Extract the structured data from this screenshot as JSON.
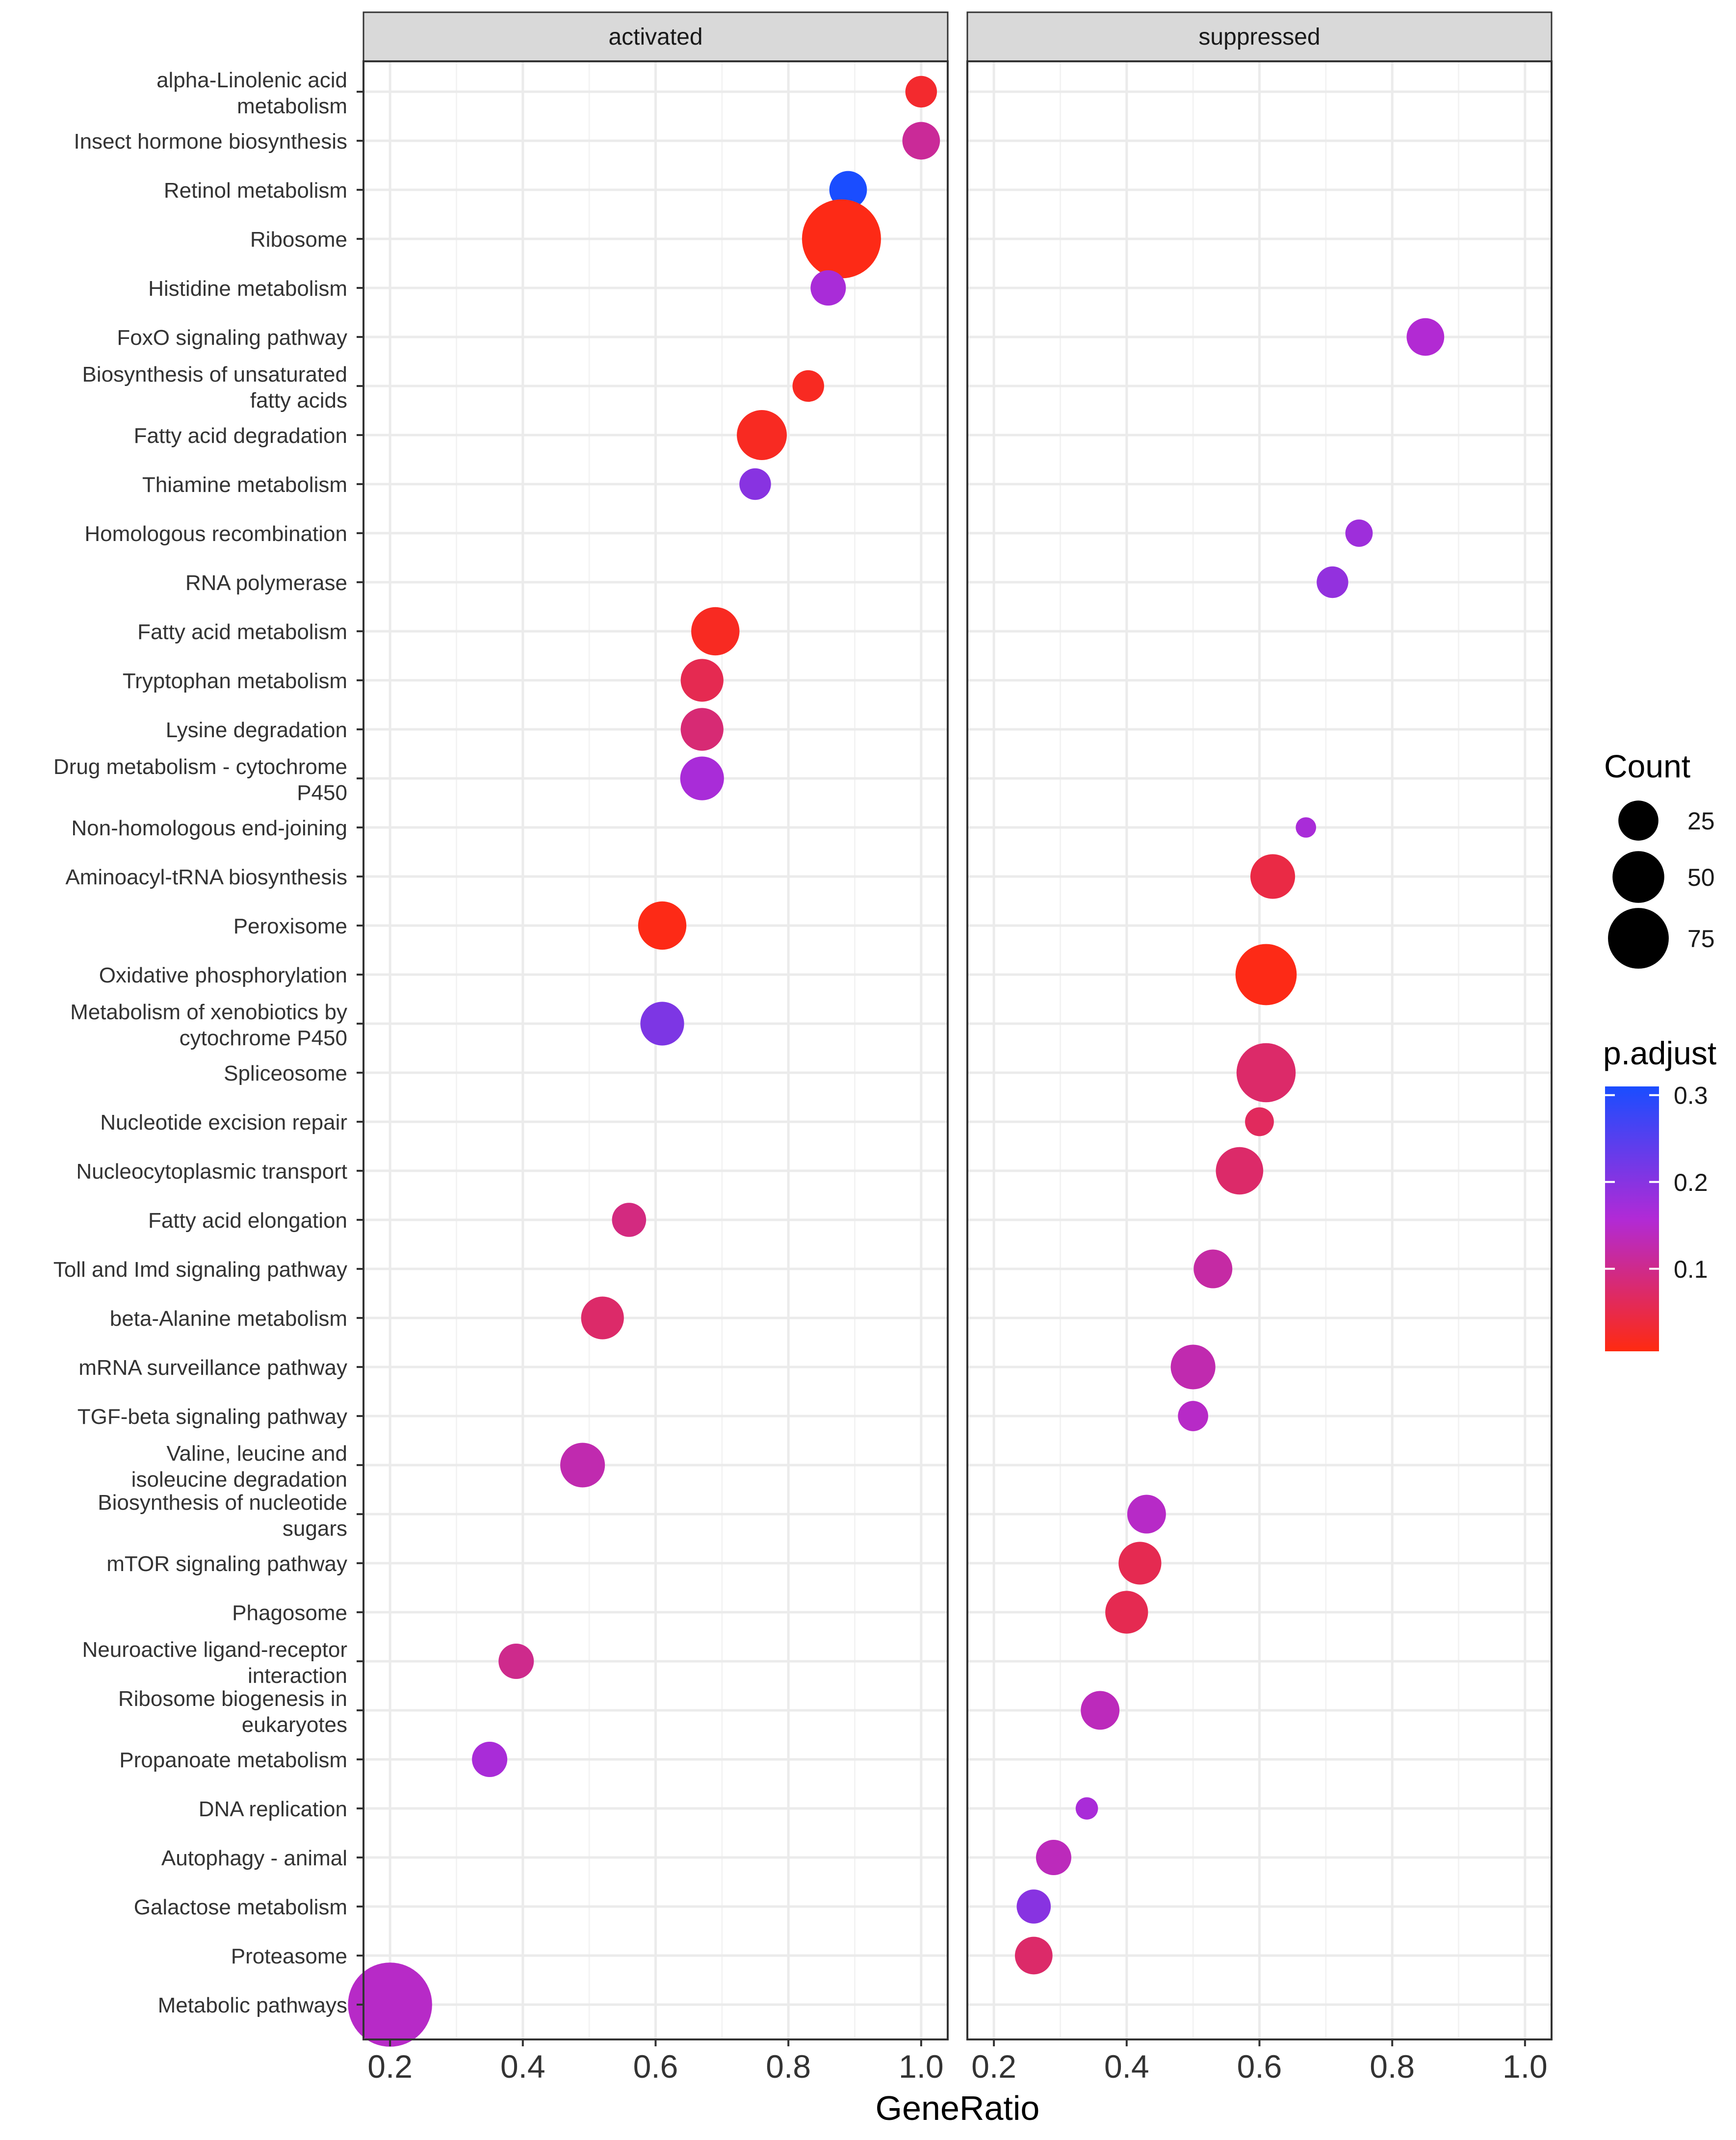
{
  "chart_data": {
    "type": "scatter",
    "subtype": "dotplot",
    "xlabel": "GeneRatio",
    "ylabel": "",
    "xlim": [
      0.16,
      1.04
    ],
    "xticks": [
      "0.2",
      "0.4",
      "0.6",
      "0.8",
      "1.0"
    ],
    "xtick_values": [
      0.2,
      0.4,
      0.6,
      0.8,
      1.0
    ],
    "panels": [
      "activated",
      "suppressed"
    ],
    "categories": [
      "alpha-Linolenic acid\nmetabolism",
      "Insect hormone biosynthesis",
      "Retinol metabolism",
      "Ribosome",
      "Histidine metabolism",
      "FoxO signaling pathway",
      "Biosynthesis of unsaturated\nfatty acids",
      "Fatty acid degradation",
      "Thiamine metabolism",
      "Homologous recombination",
      "RNA polymerase",
      "Fatty acid metabolism",
      "Tryptophan metabolism",
      "Lysine degradation",
      "Drug metabolism - cytochrome\nP450",
      "Non-homologous end-joining",
      "Aminoacyl-tRNA biosynthesis",
      "Peroxisome",
      "Oxidative phosphorylation",
      "Metabolism of xenobiotics by\ncytochrome P450",
      "Spliceosome",
      "Nucleotide excision repair",
      "Nucleocytoplasmic transport",
      "Fatty acid elongation",
      "Toll and Imd signaling pathway",
      "beta-Alanine metabolism",
      "mRNA surveillance pathway",
      "TGF-beta signaling pathway",
      "Valine, leucine and\nisoleucine degradation",
      "Biosynthesis of nucleotide\nsugars",
      "mTOR signaling pathway",
      "Phagosome",
      "Neuroactive ligand-receptor\ninteraction",
      "Ribosome biogenesis in\neukaryotes",
      "Propanoate metabolism",
      "DNA replication",
      "Autophagy - animal",
      "Galactose metabolism",
      "Proteasome",
      "Metabolic pathways"
    ],
    "points": [
      {
        "panel": "activated",
        "cat": 0,
        "x": 1.0,
        "count": 12,
        "p_adjust": 0.03
      },
      {
        "panel": "activated",
        "cat": 1,
        "x": 1.0,
        "count": 17,
        "p_adjust": 0.12
      },
      {
        "panel": "activated",
        "cat": 2,
        "x": 0.89,
        "count": 17,
        "p_adjust": 0.31
      },
      {
        "panel": "activated",
        "cat": 3,
        "x": 0.88,
        "count": 75,
        "p_adjust": 0.01
      },
      {
        "panel": "activated",
        "cat": 4,
        "x": 0.86,
        "count": 15,
        "p_adjust": 0.18
      },
      {
        "panel": "suppressed",
        "cat": 5,
        "x": 0.85,
        "count": 17,
        "p_adjust": 0.17
      },
      {
        "panel": "activated",
        "cat": 6,
        "x": 0.83,
        "count": 12,
        "p_adjust": 0.02
      },
      {
        "panel": "activated",
        "cat": 7,
        "x": 0.76,
        "count": 30,
        "p_adjust": 0.02
      },
      {
        "panel": "activated",
        "cat": 8,
        "x": 0.75,
        "count": 12,
        "p_adjust": 0.21
      },
      {
        "panel": "suppressed",
        "cat": 9,
        "x": 0.75,
        "count": 9,
        "p_adjust": 0.19
      },
      {
        "panel": "suppressed",
        "cat": 10,
        "x": 0.71,
        "count": 12,
        "p_adjust": 0.2
      },
      {
        "panel": "activated",
        "cat": 11,
        "x": 0.69,
        "count": 28,
        "p_adjust": 0.02
      },
      {
        "panel": "activated",
        "cat": 12,
        "x": 0.67,
        "count": 22,
        "p_adjust": 0.06
      },
      {
        "panel": "activated",
        "cat": 13,
        "x": 0.67,
        "count": 22,
        "p_adjust": 0.09
      },
      {
        "panel": "activated",
        "cat": 14,
        "x": 0.67,
        "count": 23,
        "p_adjust": 0.18
      },
      {
        "panel": "suppressed",
        "cat": 15,
        "x": 0.67,
        "count": 5,
        "p_adjust": 0.18
      },
      {
        "panel": "suppressed",
        "cat": 16,
        "x": 0.62,
        "count": 24,
        "p_adjust": 0.05
      },
      {
        "panel": "activated",
        "cat": 17,
        "x": 0.61,
        "count": 28,
        "p_adjust": 0.01
      },
      {
        "panel": "suppressed",
        "cat": 18,
        "x": 0.61,
        "count": 45,
        "p_adjust": 0.01
      },
      {
        "panel": "activated",
        "cat": 19,
        "x": 0.61,
        "count": 23,
        "p_adjust": 0.22
      },
      {
        "panel": "suppressed",
        "cat": 20,
        "x": 0.61,
        "count": 42,
        "p_adjust": 0.08
      },
      {
        "panel": "suppressed",
        "cat": 21,
        "x": 0.6,
        "count": 10,
        "p_adjust": 0.07
      },
      {
        "panel": "suppressed",
        "cat": 22,
        "x": 0.57,
        "count": 27,
        "p_adjust": 0.08
      },
      {
        "panel": "activated",
        "cat": 23,
        "x": 0.56,
        "count": 14,
        "p_adjust": 0.1
      },
      {
        "panel": "suppressed",
        "cat": 24,
        "x": 0.53,
        "count": 18,
        "p_adjust": 0.13
      },
      {
        "panel": "activated",
        "cat": 25,
        "x": 0.52,
        "count": 22,
        "p_adjust": 0.08
      },
      {
        "panel": "suppressed",
        "cat": 26,
        "x": 0.5,
        "count": 24,
        "p_adjust": 0.14
      },
      {
        "panel": "suppressed",
        "cat": 27,
        "x": 0.5,
        "count": 11,
        "p_adjust": 0.16
      },
      {
        "panel": "activated",
        "cat": 28,
        "x": 0.49,
        "count": 24,
        "p_adjust": 0.14
      },
      {
        "panel": "suppressed",
        "cat": 29,
        "x": 0.43,
        "count": 18,
        "p_adjust": 0.16
      },
      {
        "panel": "suppressed",
        "cat": 30,
        "x": 0.42,
        "count": 22,
        "p_adjust": 0.06
      },
      {
        "panel": "suppressed",
        "cat": 31,
        "x": 0.4,
        "count": 22,
        "p_adjust": 0.06
      },
      {
        "panel": "activated",
        "cat": 32,
        "x": 0.39,
        "count": 15,
        "p_adjust": 0.11
      },
      {
        "panel": "suppressed",
        "cat": 33,
        "x": 0.36,
        "count": 18,
        "p_adjust": 0.15
      },
      {
        "panel": "activated",
        "cat": 34,
        "x": 0.35,
        "count": 15,
        "p_adjust": 0.18
      },
      {
        "panel": "suppressed",
        "cat": 35,
        "x": 0.34,
        "count": 6,
        "p_adjust": 0.18
      },
      {
        "panel": "suppressed",
        "cat": 36,
        "x": 0.29,
        "count": 15,
        "p_adjust": 0.15
      },
      {
        "panel": "suppressed",
        "cat": 37,
        "x": 0.26,
        "count": 14,
        "p_adjust": 0.21
      },
      {
        "panel": "suppressed",
        "cat": 38,
        "x": 0.26,
        "count": 17,
        "p_adjust": 0.08
      },
      {
        "panel": "activated",
        "cat": 39,
        "x": 0.2,
        "count": 85,
        "p_adjust": 0.16
      }
    ],
    "legend": {
      "size": {
        "title": "Count",
        "labels": [
          "25",
          "50",
          "75"
        ],
        "values": [
          25,
          50,
          75
        ]
      },
      "color": {
        "title": "p.adjust",
        "labels": [
          "0.3",
          "0.2",
          "0.1"
        ],
        "values": [
          0.3,
          0.2,
          0.1
        ],
        "low_color": "#ff2a10",
        "mid_color": "#b12ad6",
        "high_color": "#1a4dff",
        "range": [
          0.005,
          0.31
        ]
      }
    },
    "colors": {
      "strip_bg": "#d9d9d9",
      "panel_border": "#333333",
      "grid": "#ebebeb"
    }
  }
}
